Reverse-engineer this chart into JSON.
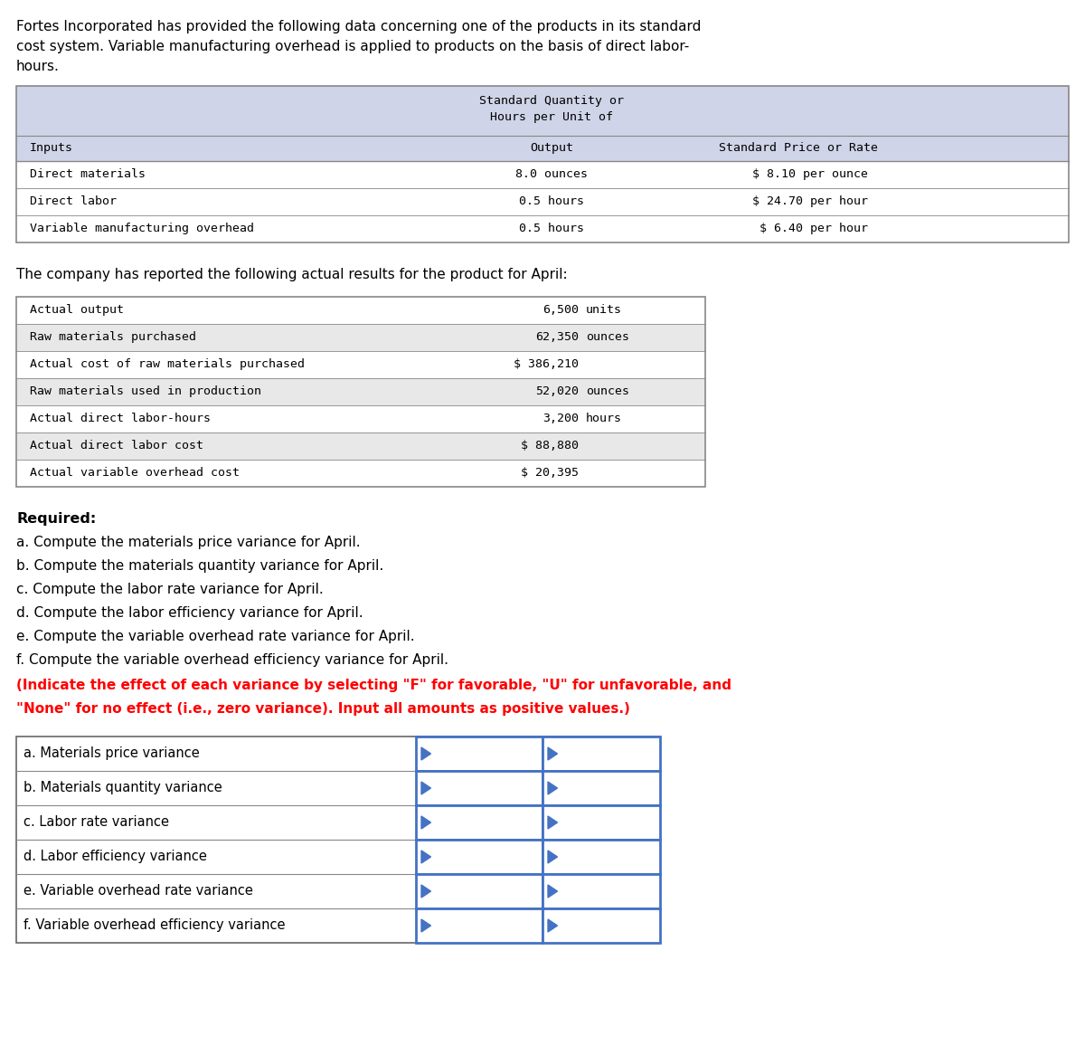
{
  "intro_line1": "Fortes Incorporated has provided the following data concerning one of the products in its standard",
  "intro_line2": "cost system. Variable manufacturing overhead is applied to products on the basis of direct labor-",
  "intro_line3": "hours.",
  "table1_rows": [
    [
      "Direct materials",
      "8.0 ounces",
      "$ 8.10 per ounce"
    ],
    [
      "Direct labor",
      "0.5 hours",
      "$ 24.70 per hour"
    ],
    [
      "Variable manufacturing overhead",
      "0.5 hours",
      "$ 6.40 per hour"
    ]
  ],
  "actual_intro": "The company has reported the following actual results for the product for April:",
  "actual_labels": [
    "Actual output",
    "Raw materials purchased",
    "Actual cost of raw materials purchased",
    "Raw materials used in production",
    "Actual direct labor-hours",
    "Actual direct labor cost",
    "Actual variable overhead cost"
  ],
  "actual_values": [
    "6,500",
    "62,350",
    "$ 386,210",
    "52,020",
    "3,200",
    "$ 88,880",
    "$ 20,395"
  ],
  "actual_units": [
    "units",
    "ounces",
    "",
    "ounces",
    "hours",
    "",
    ""
  ],
  "required_label": "Required:",
  "required_items": [
    "a. Compute the materials price variance for April.",
    "b. Compute the materials quantity variance for April.",
    "c. Compute the labor rate variance for April.",
    "d. Compute the labor efficiency variance for April.",
    "e. Compute the variable overhead rate variance for April.",
    "f. Compute the variable overhead efficiency variance for April."
  ],
  "red_line1": "(Indicate the effect of each variance by selecting \"F\" for favorable, \"U\" for unfavorable, and",
  "red_line2": "\"None\" for no effect (i.e., zero variance). Input all amounts as positive values.)",
  "answer_rows": [
    "a. Materials price variance",
    "b. Materials quantity variance",
    "c. Labor rate variance",
    "d. Labor efficiency variance",
    "e. Variable overhead rate variance",
    "f. Variable overhead efficiency variance"
  ],
  "bg_color": "#ffffff",
  "table1_header_bg": "#d0d4e8",
  "actual_row_bg_even": "#ffffff",
  "actual_row_bg_odd": "#e8e8e8",
  "border_color": "#888888",
  "blue_border": "#4472c4",
  "mono_font": "DejaVu Sans Mono",
  "sans_font": "DejaVu Sans",
  "intro_fontsize": 11,
  "mono_fontsize": 9.5,
  "sans_fontsize": 11,
  "required_fontsize": 11.5
}
